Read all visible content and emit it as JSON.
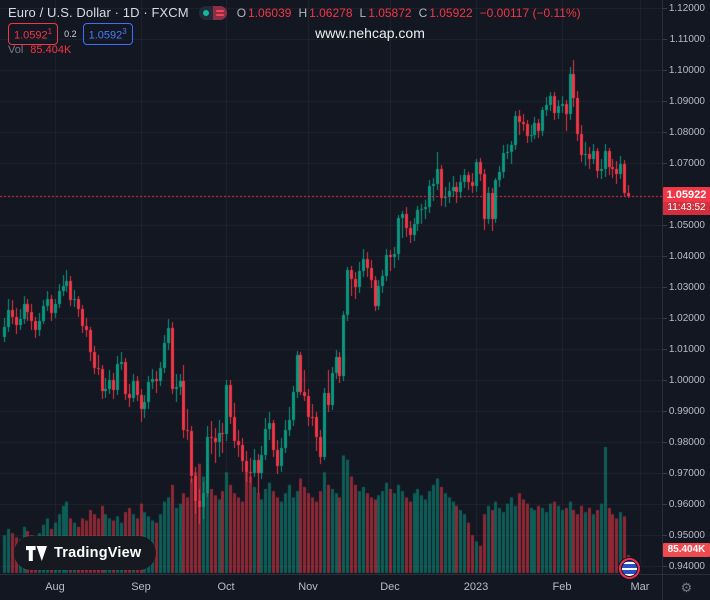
{
  "header": {
    "symbol_title": "Euro / U.S. Dollar · 1D · FXCM",
    "ohlc": {
      "o_label": "O",
      "o": "1.06039",
      "h_label": "H",
      "h": "1.06278",
      "l_label": "L",
      "l": "1.05872",
      "c_label": "C",
      "c": "1.05922",
      "change": "−0.00117 (−0.11%)"
    },
    "bid": "1.0592",
    "bid_sup": "1",
    "spread": "0.2",
    "ask": "1.0592",
    "ask_sup": "3",
    "vol_label": "Vol",
    "vol_value": "85.404K"
  },
  "watermark": "www.nehcap.com",
  "price_label": {
    "price": "1.05922",
    "countdown": "11:43:52"
  },
  "volume_label": "85.404K",
  "attribution": {
    "text": "TradingView"
  },
  "colors": {
    "background": "#131722",
    "grid": "rgba(255,255,255,0.055)",
    "up": "#089981",
    "down": "#f23645",
    "volume_up": "rgba(8,153,129,0.55)",
    "volume_down": "rgba(242,54,69,0.55)",
    "axis_text": "#b8bcc6",
    "label_bg": "#f23645",
    "separator": "#2a2e39"
  },
  "price_axis": {
    "ticks": [
      "1.12000",
      "1.11000",
      "1.10000",
      "1.09000",
      "1.08000",
      "1.07000",
      "1.05000",
      "1.04000",
      "1.03000",
      "1.02000",
      "1.01000",
      "1.00000",
      "0.99000",
      "0.98000",
      "0.97000",
      "0.96000",
      "0.95000",
      "0.94000"
    ]
  },
  "time_axis": {
    "labels": [
      {
        "text": "Aug",
        "i": 13
      },
      {
        "text": "Sep",
        "i": 35
      },
      {
        "text": "Oct",
        "i": 57
      },
      {
        "text": "Nov",
        "i": 78
      },
      {
        "text": "Dec",
        "i": 99
      },
      {
        "text": "2023",
        "i": 121
      },
      {
        "text": "Feb",
        "i": 143
      },
      {
        "text": "Mar",
        "i": 163
      }
    ]
  },
  "chart_data": {
    "type": "candlestick",
    "title": "Euro / U.S. Dollar",
    "timeframe": "1D",
    "source": "FXCM",
    "legend": [
      "price",
      "Vol"
    ],
    "ylim": [
      0.94,
      1.12
    ],
    "grid": true,
    "current_price": 1.05922,
    "current_volume_k": 85.404,
    "columns": [
      "open",
      "high",
      "low",
      "close",
      "volume_k"
    ],
    "candles": [
      [
        1.014,
        1.0201,
        1.0122,
        1.017,
        180
      ],
      [
        1.017,
        1.0262,
        1.0155,
        1.0225,
        210
      ],
      [
        1.0225,
        1.0258,
        1.018,
        1.0205,
        190
      ],
      [
        1.0205,
        1.0232,
        1.015,
        1.0178,
        170
      ],
      [
        1.0178,
        1.0228,
        1.016,
        1.0198,
        160
      ],
      [
        1.0198,
        1.0272,
        1.0182,
        1.0245,
        220
      ],
      [
        1.0245,
        1.026,
        1.0192,
        1.0218,
        200
      ],
      [
        1.0218,
        1.0245,
        1.0162,
        1.019,
        180
      ],
      [
        1.019,
        1.0205,
        1.0135,
        1.016,
        170
      ],
      [
        1.016,
        1.0215,
        1.0142,
        1.0192,
        190
      ],
      [
        1.0192,
        1.0258,
        1.018,
        1.024,
        230
      ],
      [
        1.024,
        1.0288,
        1.0222,
        1.0262,
        260
      ],
      [
        1.0262,
        1.0275,
        1.019,
        1.0215,
        210
      ],
      [
        1.0215,
        1.0262,
        1.02,
        1.0245,
        240
      ],
      [
        1.0245,
        1.031,
        1.0232,
        1.0288,
        280
      ],
      [
        1.0288,
        1.034,
        1.027,
        1.0305,
        320
      ],
      [
        1.0305,
        1.0355,
        1.0285,
        1.032,
        340
      ],
      [
        1.032,
        1.0335,
        1.024,
        1.0258,
        260
      ],
      [
        1.0258,
        1.0292,
        1.0235,
        1.0262,
        240
      ],
      [
        1.0262,
        1.027,
        1.0202,
        1.023,
        220
      ],
      [
        1.023,
        1.0242,
        1.0152,
        1.0175,
        260
      ],
      [
        1.0175,
        1.02,
        1.0138,
        1.016,
        250
      ],
      [
        1.016,
        1.0172,
        1.0062,
        1.009,
        300
      ],
      [
        1.009,
        1.011,
        1.0018,
        1.004,
        280
      ],
      [
        1.004,
        1.0082,
        1.0015,
        1.0035,
        260
      ],
      [
        1.0035,
        1.0048,
        0.9938,
        0.9965,
        320
      ],
      [
        0.9965,
        1.0008,
        0.9942,
        0.9972,
        280
      ],
      [
        0.9972,
        1.0032,
        0.9955,
        1.0,
        260
      ],
      [
        1.0,
        1.0022,
        0.994,
        0.9968,
        250
      ],
      [
        0.9968,
        1.0078,
        0.9952,
        1.0052,
        270
      ],
      [
        1.0052,
        1.009,
        1.0032,
        1.0058,
        240
      ],
      [
        1.0058,
        1.0072,
        0.9935,
        0.9955,
        290
      ],
      [
        0.9955,
        0.9988,
        0.9912,
        0.9942,
        310
      ],
      [
        0.9942,
        1.0018,
        0.9928,
        0.9998,
        280
      ],
      [
        0.9998,
        1.0012,
        0.9932,
        0.9952,
        260
      ],
      [
        0.9952,
        0.9972,
        0.9864,
        0.9908,
        330
      ],
      [
        0.9908,
        0.9952,
        0.9878,
        0.9928,
        290
      ],
      [
        0.9928,
        1.0012,
        0.9908,
        0.9995,
        270
      ],
      [
        0.9995,
        1.0035,
        0.9972,
        1.0002,
        250
      ],
      [
        1.0002,
        1.0028,
        0.9958,
        0.9998,
        240
      ],
      [
        0.9998,
        1.0058,
        0.9982,
        1.004,
        280
      ],
      [
        1.004,
        1.0145,
        1.0022,
        1.012,
        340
      ],
      [
        1.012,
        1.0198,
        1.0098,
        1.0168,
        360
      ],
      [
        1.0168,
        1.0187,
        0.9955,
        0.997,
        420
      ],
      [
        0.997,
        1.0018,
        0.993,
        0.9978,
        310
      ],
      [
        0.9978,
        1.002,
        0.9952,
        0.9998,
        330
      ],
      [
        0.9998,
        1.005,
        0.9812,
        0.9838,
        380
      ],
      [
        0.9838,
        0.9908,
        0.9808,
        0.9835,
        360
      ],
      [
        0.9835,
        0.9852,
        0.9668,
        0.969,
        450
      ],
      [
        0.969,
        0.9718,
        0.9568,
        0.961,
        480
      ],
      [
        0.961,
        0.9648,
        0.9535,
        0.9592,
        520
      ],
      [
        0.9592,
        0.9672,
        0.9552,
        0.9637,
        460
      ],
      [
        0.9637,
        0.9852,
        0.9622,
        0.9815,
        430
      ],
      [
        0.9815,
        0.9868,
        0.9762,
        0.9812,
        400
      ],
      [
        0.9812,
        0.9845,
        0.9732,
        0.98,
        370
      ],
      [
        0.98,
        0.9872,
        0.9752,
        0.9828,
        350
      ],
      [
        0.9828,
        0.986,
        0.9766,
        0.9825,
        390
      ],
      [
        0.9825,
        1.0,
        0.9802,
        0.9985,
        480
      ],
      [
        0.9985,
        0.9999,
        0.9858,
        0.9882,
        420
      ],
      [
        0.9882,
        0.9925,
        0.9782,
        0.9805,
        380
      ],
      [
        0.9805,
        0.9838,
        0.9752,
        0.9792,
        360
      ],
      [
        0.9792,
        0.9812,
        0.9702,
        0.9738,
        340
      ],
      [
        0.9738,
        0.9772,
        0.9672,
        0.9705,
        520
      ],
      [
        0.9705,
        0.9748,
        0.9668,
        0.97,
        460
      ],
      [
        0.97,
        0.9778,
        0.9688,
        0.9743,
        410
      ],
      [
        0.9743,
        0.9762,
        0.9632,
        0.97,
        380
      ],
      [
        0.97,
        0.9788,
        0.9682,
        0.9758,
        350
      ],
      [
        0.9758,
        0.9878,
        0.9742,
        0.9842,
        400
      ],
      [
        0.9842,
        0.9898,
        0.9808,
        0.986,
        430
      ],
      [
        0.986,
        0.9872,
        0.9752,
        0.9775,
        390
      ],
      [
        0.9775,
        0.9808,
        0.9698,
        0.9722,
        360
      ],
      [
        0.9722,
        0.9812,
        0.9702,
        0.9782,
        340
      ],
      [
        0.9782,
        0.9872,
        0.9765,
        0.984,
        380
      ],
      [
        0.984,
        0.9912,
        0.9818,
        0.987,
        420
      ],
      [
        0.987,
        0.9982,
        0.9852,
        0.9962,
        360
      ],
      [
        0.9962,
        1.0093,
        0.9942,
        1.0082,
        390
      ],
      [
        1.0082,
        1.009,
        0.9952,
        0.9962,
        450
      ],
      [
        0.9962,
        1.0032,
        0.9932,
        0.9948,
        410
      ],
      [
        0.9948,
        0.9972,
        0.9852,
        0.9882,
        380
      ],
      [
        0.9882,
        0.9922,
        0.9852,
        0.988,
        360
      ],
      [
        0.988,
        0.9898,
        0.9772,
        0.9815,
        340
      ],
      [
        0.9815,
        0.984,
        0.973,
        0.9752,
        390
      ],
      [
        0.9752,
        0.9975,
        0.9742,
        0.9958,
        480
      ],
      [
        0.9958,
        1.0032,
        0.9898,
        0.9918,
        420
      ],
      [
        0.9918,
        1.0042,
        0.9902,
        1.0022,
        400
      ],
      [
        1.0022,
        1.0098,
        1.0002,
        1.0075,
        380
      ],
      [
        1.0075,
        1.009,
        0.9992,
        1.0012,
        360
      ],
      [
        1.0012,
        1.0222,
        0.9998,
        1.021,
        560
      ],
      [
        1.021,
        1.0365,
        1.0192,
        1.0355,
        540
      ],
      [
        1.0355,
        1.0368,
        1.0272,
        1.0325,
        460
      ],
      [
        1.0325,
        1.0348,
        1.0262,
        1.03,
        420
      ],
      [
        1.03,
        1.038,
        1.0282,
        1.0352,
        390
      ],
      [
        1.0352,
        1.0422,
        1.0332,
        1.0392,
        410
      ],
      [
        1.0392,
        1.0412,
        1.0332,
        1.0362,
        380
      ],
      [
        1.0362,
        1.0388,
        1.0298,
        1.0322,
        360
      ],
      [
        1.0322,
        1.0335,
        1.0222,
        1.024,
        350
      ],
      [
        1.024,
        1.0322,
        1.0226,
        1.0302,
        370
      ],
      [
        1.0302,
        1.0355,
        1.0282,
        1.0335,
        390
      ],
      [
        1.0335,
        1.0422,
        1.0318,
        1.0402,
        430
      ],
      [
        1.0402,
        1.0418,
        1.0352,
        1.0398,
        400
      ],
      [
        1.0398,
        1.0428,
        1.0362,
        1.0408,
        380
      ],
      [
        1.0408,
        1.0532,
        1.0388,
        1.0522,
        420
      ],
      [
        1.0522,
        1.0545,
        1.0458,
        1.0535,
        390
      ],
      [
        1.0535,
        1.0558,
        1.0462,
        1.049,
        360
      ],
      [
        1.049,
        1.0512,
        1.0442,
        1.0468,
        340
      ],
      [
        1.0468,
        1.0522,
        1.0448,
        1.0502,
        380
      ],
      [
        1.0502,
        1.0562,
        1.0482,
        1.0548,
        400
      ],
      [
        1.0548,
        1.0568,
        1.0502,
        1.0552,
        370
      ],
      [
        1.0552,
        1.058,
        1.0518,
        1.0558,
        350
      ],
      [
        1.0558,
        1.0645,
        1.0538,
        1.0625,
        390
      ],
      [
        1.0625,
        1.0652,
        1.0578,
        1.0632,
        420
      ],
      [
        1.0632,
        1.0736,
        1.0612,
        1.0682,
        450
      ],
      [
        1.0682,
        1.0695,
        1.0562,
        1.0588,
        410
      ],
      [
        1.0588,
        1.0622,
        1.0558,
        1.059,
        380
      ],
      [
        1.059,
        1.0638,
        1.0572,
        1.061,
        360
      ],
      [
        1.061,
        1.0658,
        1.0592,
        1.0622,
        340
      ],
      [
        1.0622,
        1.064,
        1.0572,
        1.0608,
        320
      ],
      [
        1.0608,
        1.0662,
        1.0588,
        1.0638,
        300
      ],
      [
        1.0638,
        1.0682,
        1.0618,
        1.066,
        280
      ],
      [
        1.066,
        1.0672,
        1.0612,
        1.064,
        240
      ],
      [
        1.064,
        1.0668,
        1.0602,
        1.0625,
        180
      ],
      [
        1.0625,
        1.0712,
        1.0608,
        1.0702,
        150
      ],
      [
        1.0702,
        1.0715,
        1.0642,
        1.0665,
        130
      ],
      [
        1.0665,
        1.0682,
        1.0484,
        1.0519,
        280
      ],
      [
        1.0519,
        1.0622,
        1.0502,
        1.0602,
        320
      ],
      [
        1.0602,
        1.0618,
        1.0482,
        1.052,
        300
      ],
      [
        1.052,
        1.0652,
        1.0508,
        1.0645,
        340
      ],
      [
        1.0645,
        1.0692,
        1.0622,
        1.0672,
        310
      ],
      [
        1.0672,
        1.0758,
        1.0652,
        1.0732,
        290
      ],
      [
        1.0732,
        1.0762,
        1.0712,
        1.0735,
        330
      ],
      [
        1.0735,
        1.0772,
        1.0698,
        1.0758,
        360
      ],
      [
        1.0758,
        1.0868,
        1.0742,
        1.0852,
        320
      ],
      [
        1.0852,
        1.0872,
        1.0792,
        1.0832,
        380
      ],
      [
        1.0832,
        1.0858,
        1.0802,
        1.0825,
        350
      ],
      [
        1.0825,
        1.0838,
        1.0766,
        1.0788,
        330
      ],
      [
        1.0788,
        1.0822,
        1.0768,
        1.0792,
        310
      ],
      [
        1.0792,
        1.0848,
        1.0778,
        1.0828,
        300
      ],
      [
        1.0828,
        1.0842,
        1.0782,
        1.0802,
        320
      ],
      [
        1.0802,
        1.0882,
        1.0788,
        1.087,
        310
      ],
      [
        1.087,
        1.0912,
        1.0852,
        1.0888,
        290
      ],
      [
        1.0888,
        1.0928,
        1.0868,
        1.0915,
        330
      ],
      [
        1.0915,
        1.093,
        1.0838,
        1.0862,
        340
      ],
      [
        1.0862,
        1.0902,
        1.0842,
        1.0885,
        320
      ],
      [
        1.0885,
        1.0915,
        1.0862,
        1.0892,
        300
      ],
      [
        1.0892,
        1.0905,
        1.0802,
        1.0858,
        310
      ],
      [
        1.0858,
        1.101,
        1.0838,
        1.0988,
        340
      ],
      [
        1.0988,
        1.1033,
        1.0882,
        1.091,
        300
      ],
      [
        1.091,
        1.0932,
        1.0772,
        1.0795,
        280
      ],
      [
        1.0795,
        1.0822,
        1.0702,
        1.0725,
        320
      ],
      [
        1.0725,
        1.0768,
        1.0692,
        1.0728,
        290
      ],
      [
        1.0728,
        1.0752,
        1.0682,
        1.0712,
        310
      ],
      [
        1.0712,
        1.0762,
        1.0698,
        1.0738,
        280
      ],
      [
        1.0738,
        1.0748,
        1.0652,
        1.0675,
        300
      ],
      [
        1.0675,
        1.0712,
        1.0648,
        1.068,
        330
      ],
      [
        1.068,
        1.0762,
        1.0655,
        1.0738,
        600
      ],
      [
        1.0738,
        1.0748,
        1.0662,
        1.0688,
        310
      ],
      [
        1.0688,
        1.0712,
        1.0652,
        1.0682,
        280
      ],
      [
        1.0682,
        1.0708,
        1.0632,
        1.0665,
        260
      ],
      [
        1.0665,
        1.0722,
        1.0648,
        1.0698,
        290
      ],
      [
        1.0698,
        1.071,
        1.0592,
        1.06039,
        270
      ],
      [
        1.06039,
        1.06278,
        1.05872,
        1.05922,
        85.404
      ]
    ]
  }
}
